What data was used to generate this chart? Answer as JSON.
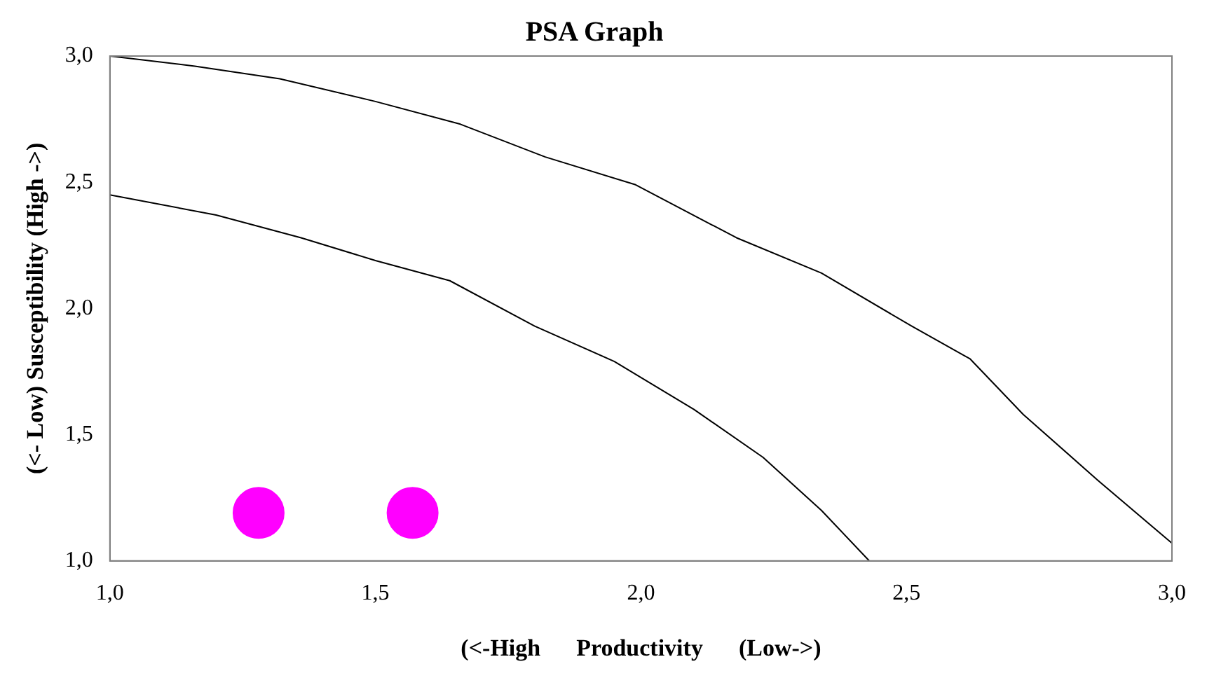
{
  "chart_data": {
    "type": "scatter",
    "title": "PSA Graph",
    "xlabel": "(<-High      Productivity      (Low->)",
    "ylabel": "(<- Low) Susceptibility (High ->)",
    "xlim": [
      1,
      3
    ],
    "ylim": [
      1,
      3
    ],
    "xticks": [
      {
        "value": 1,
        "label": "1,0"
      },
      {
        "value": 1.5,
        "label": "1,5"
      },
      {
        "value": 2,
        "label": "2,0"
      },
      {
        "value": 2.5,
        "label": "2,5"
      },
      {
        "value": 3,
        "label": "3,0"
      }
    ],
    "yticks": [
      {
        "value": 1,
        "label": "1,0"
      },
      {
        "value": 1.5,
        "label": "1,5"
      },
      {
        "value": 2,
        "label": "2,0"
      },
      {
        "value": 2.5,
        "label": "2,5"
      },
      {
        "value": 3,
        "label": "3,0"
      }
    ],
    "grid": false,
    "legend": false,
    "series": [
      {
        "type": "line",
        "color": "#000000",
        "marker": "none",
        "x": [
          1.0,
          1.16,
          1.32,
          1.5,
          1.66,
          1.82,
          1.99,
          2.18,
          2.34,
          2.51,
          2.62,
          2.72,
          2.86,
          3.0
        ],
        "values": [
          3.0,
          2.96,
          2.91,
          2.82,
          2.73,
          2.6,
          2.49,
          2.28,
          2.14,
          1.93,
          1.8,
          1.58,
          1.32,
          1.07
        ]
      },
      {
        "type": "line",
        "color": "#000000",
        "marker": "none",
        "x": [
          1.0,
          1.2,
          1.36,
          1.5,
          1.64,
          1.8,
          1.95,
          2.1,
          2.23,
          2.34,
          2.43
        ],
        "values": [
          2.45,
          2.37,
          2.28,
          2.19,
          2.11,
          1.93,
          1.79,
          1.6,
          1.41,
          1.2,
          1.0
        ]
      },
      {
        "type": "scatter",
        "color": "#ff00ff",
        "marker": "circle",
        "x": [
          1.28,
          1.57
        ],
        "values": [
          1.19,
          1.19
        ]
      }
    ]
  }
}
